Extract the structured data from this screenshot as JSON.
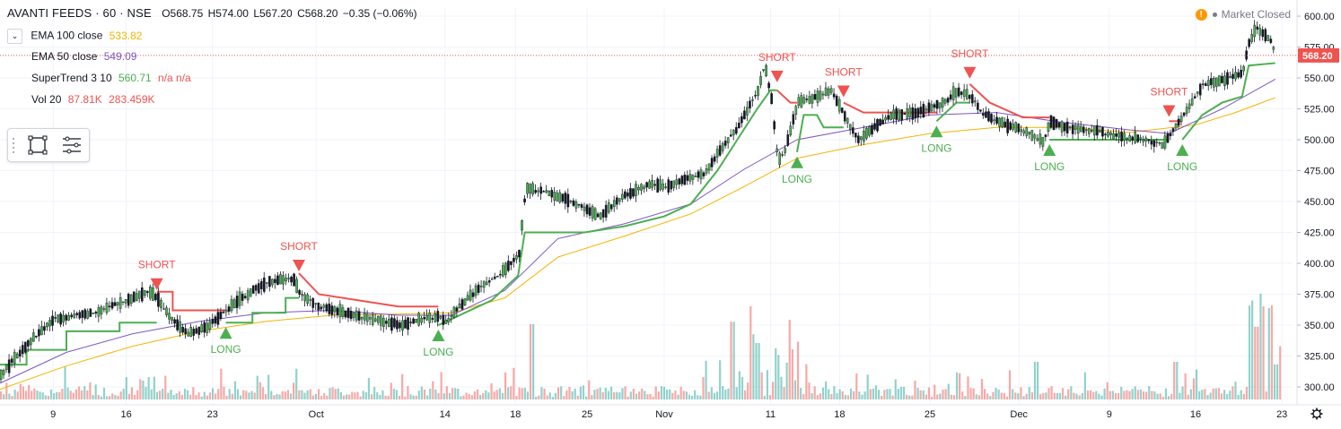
{
  "header": {
    "symbol": "AVANTI FEEDS · 60 · NSE",
    "ohlc": {
      "open": "O568.75",
      "high": "H574.00",
      "low": "L567.20",
      "close": "C568.20",
      "change": "−0.35 (−0.06%)"
    },
    "market_status": "Market Closed"
  },
  "indicators": [
    {
      "name": "EMA 100 close",
      "value": "533.82",
      "color": "#f4b400"
    },
    {
      "name": "EMA 50 close",
      "value": "549.09",
      "color": "#7e57c2"
    },
    {
      "name": "SuperTrend 3 10",
      "value": "560.71",
      "extra": "n/a  n/a",
      "color": "#4caf50"
    },
    {
      "name": "Vol 20",
      "value": "87.81K",
      "extra": "283.459K",
      "color": "#ef5350"
    }
  ],
  "chart_data": {
    "type": "candlestick",
    "price_axis": {
      "min": 300,
      "max": 600,
      "ticks": [
        "600.00",
        "575.00",
        "550.00",
        "525.00",
        "500.00",
        "475.00",
        "450.00",
        "425.00",
        "400.00",
        "375.00",
        "350.00",
        "325.00",
        "300.00"
      ]
    },
    "last_price": "568.20",
    "time_axis": [
      "9",
      "16",
      "23",
      "Oct",
      "14",
      "18",
      "25",
      "Nov",
      "11",
      "18",
      "25",
      "Dec",
      "9",
      "16",
      "23"
    ],
    "price_path": [
      [
        0,
        310
      ],
      [
        0.02,
        335
      ],
      [
        0.04,
        355
      ],
      [
        0.07,
        360
      ],
      [
        0.09,
        368
      ],
      [
        0.11,
        377
      ],
      [
        0.118,
        372
      ],
      [
        0.125,
        360
      ],
      [
        0.14,
        343
      ],
      [
        0.155,
        348
      ],
      [
        0.175,
        367
      ],
      [
        0.2,
        385
      ],
      [
        0.22,
        388
      ],
      [
        0.225,
        375
      ],
      [
        0.24,
        365
      ],
      [
        0.27,
        357
      ],
      [
        0.3,
        350
      ],
      [
        0.315,
        354
      ],
      [
        0.33,
        357
      ],
      [
        0.335,
        352
      ],
      [
        0.345,
        365
      ],
      [
        0.36,
        380
      ],
      [
        0.375,
        390
      ],
      [
        0.39,
        407
      ],
      [
        0.395,
        460
      ],
      [
        0.41,
        458
      ],
      [
        0.43,
        450
      ],
      [
        0.45,
        438
      ],
      [
        0.47,
        455
      ],
      [
        0.49,
        465
      ],
      [
        0.5,
        462
      ],
      [
        0.52,
        470
      ],
      [
        0.53,
        472
      ],
      [
        0.54,
        490
      ],
      [
        0.555,
        510
      ],
      [
        0.57,
        540
      ],
      [
        0.575,
        560
      ],
      [
        0.58,
        535
      ],
      [
        0.585,
        482
      ],
      [
        0.59,
        490
      ],
      [
        0.6,
        530
      ],
      [
        0.615,
        535
      ],
      [
        0.625,
        540
      ],
      [
        0.635,
        520
      ],
      [
        0.645,
        500
      ],
      [
        0.655,
        508
      ],
      [
        0.67,
        520
      ],
      [
        0.69,
        522
      ],
      [
        0.71,
        530
      ],
      [
        0.72,
        540
      ],
      [
        0.73,
        535
      ],
      [
        0.74,
        520
      ],
      [
        0.755,
        513
      ],
      [
        0.77,
        507
      ],
      [
        0.785,
        498
      ],
      [
        0.79,
        515
      ],
      [
        0.8,
        510
      ],
      [
        0.82,
        508
      ],
      [
        0.84,
        503
      ],
      [
        0.86,
        500
      ],
      [
        0.875,
        496
      ],
      [
        0.88,
        503
      ],
      [
        0.89,
        520
      ],
      [
        0.905,
        545
      ],
      [
        0.92,
        548
      ],
      [
        0.935,
        555
      ],
      [
        0.94,
        580
      ],
      [
        0.945,
        590
      ],
      [
        0.955,
        582
      ],
      [
        0.96,
        570
      ]
    ],
    "ema100_path": [
      [
        0,
        298
      ],
      [
        0.05,
        317
      ],
      [
        0.1,
        333
      ],
      [
        0.15,
        345
      ],
      [
        0.2,
        353
      ],
      [
        0.25,
        358
      ],
      [
        0.3,
        359
      ],
      [
        0.34,
        360
      ],
      [
        0.38,
        372
      ],
      [
        0.42,
        405
      ],
      [
        0.47,
        422
      ],
      [
        0.52,
        440
      ],
      [
        0.56,
        462
      ],
      [
        0.6,
        485
      ],
      [
        0.65,
        496
      ],
      [
        0.7,
        505
      ],
      [
        0.75,
        510
      ],
      [
        0.8,
        510
      ],
      [
        0.85,
        506
      ],
      [
        0.9,
        512
      ],
      [
        0.93,
        522
      ],
      [
        0.96,
        534
      ]
    ],
    "ema50_path": [
      [
        0,
        303
      ],
      [
        0.05,
        328
      ],
      [
        0.1,
        343
      ],
      [
        0.15,
        353
      ],
      [
        0.2,
        360
      ],
      [
        0.25,
        362
      ],
      [
        0.3,
        358
      ],
      [
        0.34,
        358
      ],
      [
        0.38,
        378
      ],
      [
        0.42,
        420
      ],
      [
        0.47,
        432
      ],
      [
        0.52,
        448
      ],
      [
        0.56,
        476
      ],
      [
        0.6,
        500
      ],
      [
        0.65,
        510
      ],
      [
        0.7,
        520
      ],
      [
        0.75,
        522
      ],
      [
        0.8,
        514
      ],
      [
        0.85,
        508
      ],
      [
        0.88,
        505
      ],
      [
        0.92,
        525
      ],
      [
        0.96,
        549
      ]
    ],
    "supertrend_segments": [
      {
        "dir": "up",
        "points": [
          [
            0,
            318
          ],
          [
            0.02,
            318
          ],
          [
            0.02,
            330
          ],
          [
            0.05,
            330
          ],
          [
            0.05,
            345
          ],
          [
            0.09,
            345
          ],
          [
            0.09,
            352
          ],
          [
            0.118,
            352
          ]
        ]
      },
      {
        "dir": "down",
        "points": [
          [
            0.118,
            377
          ],
          [
            0.13,
            377
          ],
          [
            0.13,
            362
          ],
          [
            0.17,
            362
          ]
        ]
      },
      {
        "dir": "up",
        "points": [
          [
            0.17,
            352
          ],
          [
            0.19,
            352
          ],
          [
            0.19,
            360
          ],
          [
            0.215,
            360
          ],
          [
            0.215,
            372
          ],
          [
            0.225,
            372
          ]
        ]
      },
      {
        "dir": "down",
        "points": [
          [
            0.225,
            392
          ],
          [
            0.24,
            375
          ],
          [
            0.27,
            370
          ],
          [
            0.3,
            365
          ],
          [
            0.33,
            365
          ]
        ]
      },
      {
        "dir": "up",
        "points": [
          [
            0.33,
            350
          ],
          [
            0.35,
            360
          ],
          [
            0.37,
            370
          ],
          [
            0.39,
            390
          ],
          [
            0.395,
            425
          ],
          [
            0.44,
            425
          ],
          [
            0.47,
            430
          ],
          [
            0.5,
            438
          ],
          [
            0.52,
            448
          ],
          [
            0.54,
            475
          ],
          [
            0.555,
            500
          ],
          [
            0.57,
            525
          ],
          [
            0.58,
            540
          ],
          [
            0.585,
            540
          ]
        ]
      },
      {
        "dir": "down",
        "points": [
          [
            0.585,
            540
          ],
          [
            0.595,
            530
          ],
          [
            0.6,
            530
          ]
        ]
      },
      {
        "dir": "up",
        "points": [
          [
            0.6,
            490
          ],
          [
            0.605,
            520
          ],
          [
            0.615,
            520
          ],
          [
            0.62,
            510
          ],
          [
            0.635,
            510
          ]
        ]
      },
      {
        "dir": "down",
        "points": [
          [
            0.635,
            530
          ],
          [
            0.65,
            522
          ],
          [
            0.7,
            522
          ],
          [
            0.705,
            522
          ]
        ]
      },
      {
        "dir": "up",
        "points": [
          [
            0.705,
            515
          ],
          [
            0.72,
            530
          ],
          [
            0.73,
            530
          ]
        ]
      },
      {
        "dir": "down",
        "points": [
          [
            0.73,
            545
          ],
          [
            0.745,
            530
          ],
          [
            0.77,
            518
          ],
          [
            0.79,
            518
          ]
        ]
      },
      {
        "dir": "up",
        "points": [
          [
            0.79,
            500
          ],
          [
            0.88,
            500
          ]
        ]
      },
      {
        "dir": "down",
        "points": [
          [
            0.88,
            515
          ],
          [
            0.89,
            515
          ]
        ]
      },
      {
        "dir": "up",
        "points": [
          [
            0.89,
            500
          ],
          [
            0.905,
            520
          ],
          [
            0.92,
            530
          ],
          [
            0.935,
            535
          ],
          [
            0.94,
            560
          ],
          [
            0.96,
            562
          ]
        ]
      }
    ],
    "signals": [
      {
        "label": "SHORT",
        "x": 0.118,
        "price": 377,
        "dir": "down"
      },
      {
        "label": "LONG",
        "x": 0.17,
        "price": 352,
        "dir": "up"
      },
      {
        "label": "SHORT",
        "x": 0.225,
        "price": 392,
        "dir": "down"
      },
      {
        "label": "LONG",
        "x": 0.33,
        "price": 350,
        "dir": "up"
      },
      {
        "label": "SHORT",
        "x": 0.585,
        "price": 545,
        "dir": "down"
      },
      {
        "label": "LONG",
        "x": 0.6,
        "price": 490,
        "dir": "up"
      },
      {
        "label": "SHORT",
        "x": 0.635,
        "price": 533,
        "dir": "down"
      },
      {
        "label": "LONG",
        "x": 0.705,
        "price": 515,
        "dir": "up"
      },
      {
        "label": "SHORT",
        "x": 0.73,
        "price": 548,
        "dir": "down"
      },
      {
        "label": "LONG",
        "x": 0.79,
        "price": 500,
        "dir": "up"
      },
      {
        "label": "SHORT",
        "x": 0.88,
        "price": 517,
        "dir": "down"
      },
      {
        "label": "LONG",
        "x": 0.89,
        "price": 500,
        "dir": "up"
      }
    ],
    "volume_spikes": [
      [
        0.4,
        0.6
      ],
      [
        0.55,
        0.62
      ],
      [
        0.565,
        0.52
      ],
      [
        0.57,
        0.45
      ],
      [
        0.585,
        0.32
      ],
      [
        0.595,
        0.4
      ],
      [
        0.6,
        0.46
      ],
      [
        0.78,
        0.3
      ],
      [
        0.885,
        0.3
      ],
      [
        0.94,
        0.65
      ],
      [
        0.945,
        0.58
      ],
      [
        0.95,
        0.68
      ],
      [
        0.955,
        0.48
      ],
      [
        0.96,
        0.28
      ]
    ],
    "colors": {
      "up": "#26a69a",
      "down": "#ef5350",
      "candle_up": "#4caf50",
      "candle_down": "#131722",
      "ema100": "#f4b400",
      "ema50": "#7e57c2",
      "st_up": "#4caf50",
      "st_down": "#ef5350",
      "grid": "#f0f3fa",
      "axis_text": "#131722",
      "last_price_bg": "#ef5350"
    }
  }
}
